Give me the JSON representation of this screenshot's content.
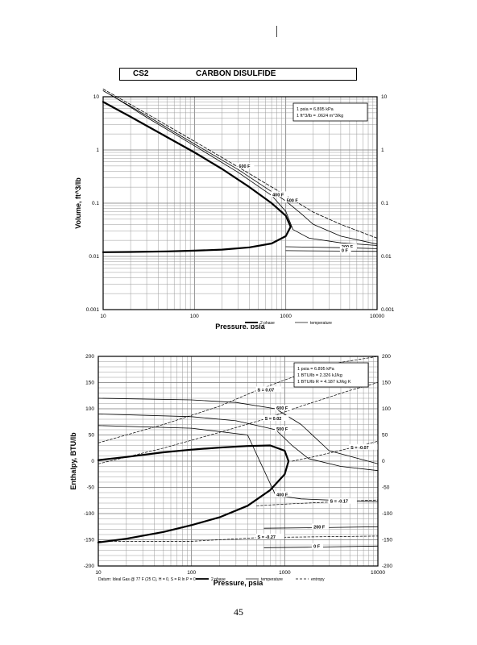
{
  "header": {
    "compound_code": "CS2",
    "compound_name": "CARBON DISULFIDE"
  },
  "page_number": "45",
  "chart_data": [
    {
      "type": "line",
      "title": "CARBON DISULFIDE",
      "xlabel": "Pressure,  psia",
      "ylabel": "Volume, ft^3/lb",
      "xscale": "log",
      "yscale": "log",
      "xlim": [
        10,
        10000
      ],
      "ylim": [
        0.001,
        10
      ],
      "x_ticks": [
        "10",
        "100",
        "1000",
        "10000"
      ],
      "y_ticks_left": [
        "0.001",
        "0.01",
        "0.1",
        "1",
        "10"
      ],
      "y_ticks_right": [
        "0.001",
        "0.01",
        "0.1",
        "1",
        "10"
      ],
      "grid": true,
      "conversion_box": [
        "1 psia = 6.895 kPa",
        "1 ft^3/lb = .0624 m^3/kg"
      ],
      "legend": [
        {
          "label": "2 phase",
          "style": "thick"
        },
        {
          "label": "temperature",
          "style": "thin"
        }
      ],
      "series": [
        {
          "kind": "2-phase",
          "x": [
            10,
            20,
            50,
            100,
            200,
            400,
            700,
            1000,
            1130,
            1000,
            700,
            400,
            200,
            100,
            50,
            20,
            10
          ],
          "y": [
            8.0,
            4.2,
            1.75,
            0.9,
            0.44,
            0.2,
            0.1,
            0.058,
            0.036,
            0.024,
            0.0175,
            0.0148,
            0.0134,
            0.0128,
            0.0124,
            0.0121,
            0.012
          ]
        },
        {
          "kind": "isotherm",
          "label": "600 F",
          "dashed": true,
          "x": [
            10,
            30,
            100,
            300,
            1000,
            2000,
            4000,
            10000
          ],
          "y": [
            14,
            4.8,
            1.45,
            0.48,
            0.14,
            0.068,
            0.04,
            0.022
          ]
        },
        {
          "kind": "isotherm",
          "label": "500 F",
          "x": [
            10,
            30,
            100,
            300,
            1000,
            1500,
            2000,
            4000,
            10000
          ],
          "y": [
            13,
            4.4,
            1.3,
            0.43,
            0.11,
            0.062,
            0.04,
            0.024,
            0.017
          ]
        },
        {
          "kind": "isotherm",
          "label": "400 F",
          "x": [
            12,
            30,
            100,
            300,
            700,
            1000,
            1200,
            1800,
            4000,
            10000
          ],
          "y": [
            11,
            4.1,
            1.2,
            0.38,
            0.14,
            0.07,
            0.032,
            0.022,
            0.018,
            0.016
          ]
        },
        {
          "kind": "isotherm",
          "label": "200 F",
          "x": [
            1000,
            4000,
            10000
          ],
          "y": [
            0.0152,
            0.0146,
            0.014
          ]
        },
        {
          "kind": "isotherm",
          "label": "0 F",
          "x": [
            1000,
            4000,
            10000
          ],
          "y": [
            0.0128,
            0.0126,
            0.0124
          ]
        }
      ]
    },
    {
      "type": "line",
      "xlabel": "Pressure,  psia",
      "ylabel": "Enthalpy, BTU/lb",
      "xscale": "log",
      "xlim": [
        10,
        10000
      ],
      "ylim": [
        -200,
        200
      ],
      "x_ticks": [
        "10",
        "100",
        "1000",
        "10000"
      ],
      "y_ticks_left": [
        "-200",
        "-150",
        "-100",
        "-50",
        "0",
        "50",
        "100",
        "150",
        "200"
      ],
      "y_ticks_right": [
        "-200",
        "-150",
        "-100",
        "-50",
        "0",
        "50",
        "100",
        "150",
        "200"
      ],
      "grid": true,
      "conversion_box": [
        "1 psia = 6.895 kPa",
        "1 BTU/lb = 2.326 kJ/kg",
        "1 BTU/lb R = 4.187 kJ/kg K"
      ],
      "footnote": "Datum: Ideal Gas @ 77 F (25 C),  H = 0,  S = R ln P = 0",
      "legend": [
        {
          "label": "2 phase",
          "style": "thick"
        },
        {
          "label": "temperature",
          "style": "thin"
        },
        {
          "label": "entropy",
          "style": "dashed"
        }
      ],
      "series": [
        {
          "kind": "2-phase",
          "x": [
            10,
            20,
            50,
            100,
            200,
            400,
            700,
            1000,
            1100,
            1000,
            700,
            400,
            200,
            100,
            50,
            20,
            10
          ],
          "y": [
            2,
            8,
            17,
            22,
            26,
            29,
            30,
            20,
            0,
            -25,
            -55,
            -85,
            -107,
            -122,
            -135,
            -148,
            -155
          ]
        },
        {
          "kind": "isotherm",
          "label": "600 F",
          "x": [
            10,
            100,
            300,
            800,
            1500,
            3000,
            10000
          ],
          "y": [
            120,
            117,
            112,
            100,
            70,
            20,
            -5
          ]
        },
        {
          "kind": "isotherm",
          "label": "500 F",
          "x": [
            10,
            100,
            300,
            800,
            1200,
            1800,
            4000,
            10000
          ],
          "y": [
            90,
            85,
            77,
            60,
            30,
            5,
            -10,
            -18
          ]
        },
        {
          "kind": "isotherm",
          "label": "400 F",
          "x": [
            10,
            100,
            400,
            800,
            1500,
            4000,
            10000
          ],
          "y": [
            68,
            63,
            50,
            -65,
            -72,
            -75,
            -77
          ]
        },
        {
          "kind": "isotherm",
          "label": "200 F",
          "x": [
            600,
            2000,
            10000
          ],
          "y": [
            -128,
            -127,
            -125
          ]
        },
        {
          "kind": "isotherm",
          "label": "0 F",
          "x": [
            600,
            2000,
            10000
          ],
          "y": [
            -165,
            -164,
            -162
          ]
        },
        {
          "kind": "entropy",
          "label": "S = 0.07",
          "x": [
            10,
            50,
            200,
            500,
            1000,
            3000,
            10000
          ],
          "y": [
            35,
            70,
            105,
            135,
            155,
            185,
            200
          ]
        },
        {
          "kind": "entropy",
          "label": "S = 0.02",
          "x": [
            10,
            50,
            200,
            600,
            1500,
            5000,
            10000
          ],
          "y": [
            -5,
            25,
            55,
            80,
            105,
            135,
            150
          ]
        },
        {
          "kind": "entropy",
          "label": "S = -0.07",
          "x": [
            1200,
            2000,
            5000,
            10000
          ],
          "y": [
            0,
            8,
            25,
            38
          ]
        },
        {
          "kind": "entropy",
          "label": "S = -0.17",
          "x": [
            500,
            1000,
            3000,
            10000
          ],
          "y": [
            -85,
            -82,
            -78,
            -74
          ]
        },
        {
          "kind": "entropy",
          "label": "S = -0.27",
          "x": [
            10,
            100,
            500,
            1000,
            10000
          ],
          "y": [
            -153,
            -153,
            -146,
            -145,
            -143
          ]
        }
      ]
    }
  ]
}
